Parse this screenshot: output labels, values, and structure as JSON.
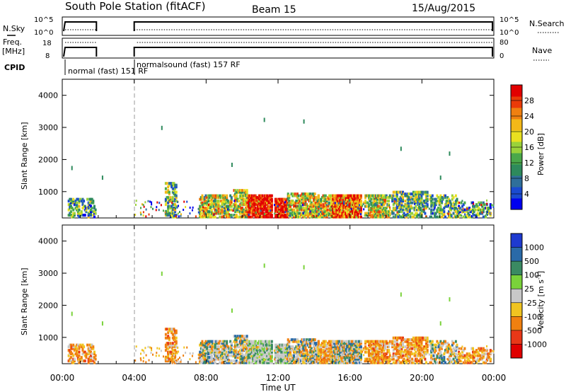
{
  "header": {
    "title": "South Pole Station (fitACF)",
    "beam": "Beam 15",
    "date": "15/Aug/2015"
  },
  "status_panels": {
    "nsky_label": "N.Sky",
    "nsky_ticks": [
      "10^5",
      "10^0"
    ],
    "nsearch_label": "N.Search",
    "nsearch_ticks": [
      "10^5",
      "10^0"
    ],
    "freq_label_1": "Freq.",
    "freq_label_2": "[MHz]",
    "freq_ticks": [
      "18",
      "8"
    ],
    "nave_label": "Nave",
    "nave_ticks": [
      "80",
      "0"
    ],
    "cpid_label": "CPID",
    "cpid_segments": [
      {
        "text": "normal (fast) 151 RF",
        "start_hour": 0.0
      },
      {
        "text": "normalsound (fast) 157 RF",
        "start_hour": 4.0
      }
    ]
  },
  "chart_data": [
    {
      "type": "heatmap",
      "name": "power",
      "ylabel": "Slant Range [km]",
      "ylim": [
        180,
        4500
      ],
      "yticks": [
        1000,
        2000,
        3000,
        4000
      ],
      "x_range_hours": [
        0,
        24
      ],
      "data_gap_hours": [
        1.9,
        4.0
      ],
      "colorbar": {
        "label": "Power [dB]",
        "range": [
          0,
          32
        ],
        "ticks": [
          "4",
          "8",
          "12",
          "16",
          "20",
          "24",
          "28"
        ],
        "colors": [
          "#0000ee",
          "#1a4ad0",
          "#2f6f9a",
          "#2e8a5c",
          "#4aa84a",
          "#9ad23a",
          "#e8e020",
          "#f4b818",
          "#f08010",
          "#ea3a08",
          "#e20000"
        ]
      }
    },
    {
      "type": "heatmap",
      "name": "velocity",
      "ylabel": "Slant Range [km]",
      "ylim": [
        180,
        4500
      ],
      "yticks": [
        1000,
        2000,
        3000,
        4000
      ],
      "x_range_hours": [
        0,
        24
      ],
      "data_gap_hours": [
        1.9,
        4.0
      ],
      "colorbar": {
        "label": "Velocity [m s^-1]",
        "ticks": [
          "1000",
          "500",
          "100",
          "25",
          "-25",
          "-100",
          "-500",
          "-1000"
        ],
        "colors": [
          "#1e3ad0",
          "#2a6aa8",
          "#3a8a62",
          "#7ad23a",
          "#c8c8c8",
          "#f0c420",
          "#f08010",
          "#e83818",
          "#e00000"
        ]
      }
    }
  ],
  "xaxis": {
    "label": "Time UT",
    "ticks": [
      "00:00",
      "04:00",
      "08:00",
      "12:00",
      "16:00",
      "20:00",
      "00:00"
    ]
  }
}
